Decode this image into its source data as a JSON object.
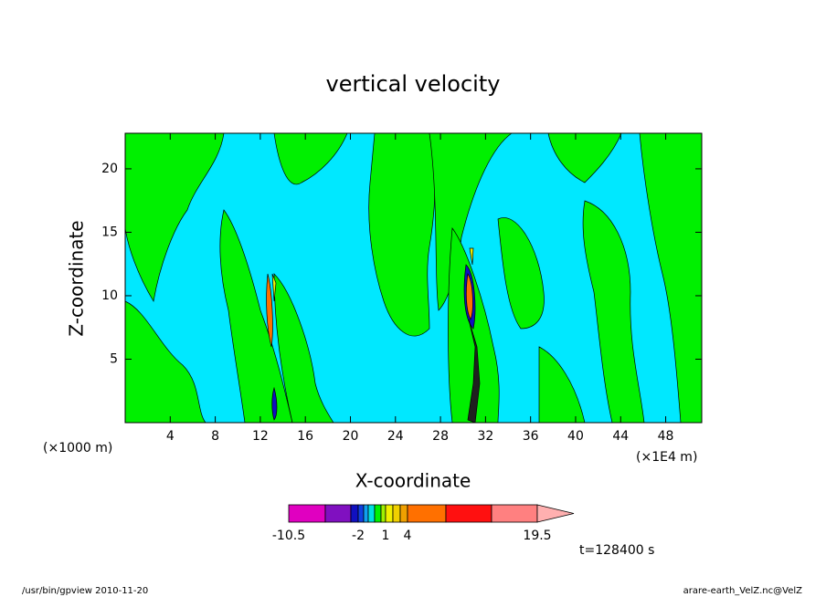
{
  "chart_data": {
    "type": "contour",
    "title": "vertical velocity",
    "xlabel": "X-coordinate",
    "ylabel": "Z-coordinate",
    "x_unit": "(×1000 m)",
    "x_unit_right": "(×1E4 m)",
    "xlim": [
      0,
      51.2
    ],
    "ylim": [
      0,
      22.8
    ],
    "xticks": [
      4,
      8,
      12,
      16,
      20,
      24,
      28,
      32,
      36,
      40,
      44,
      48
    ],
    "yticks": [
      5,
      10,
      15,
      20
    ],
    "colorbar": {
      "levels": [
        -10.5,
        null,
        null,
        -2,
        null,
        null,
        null,
        null,
        1,
        null,
        null,
        4,
        null,
        null,
        19.5
      ],
      "colors": [
        "#e000c0",
        "#8010c0",
        "#1010c0",
        "#1040e0",
        "#10a0f0",
        "#00e0e0",
        "#00f000",
        "#a0f000",
        "#f0f000",
        "#f0d000",
        "#f0a000",
        "#ff7000",
        "#ff1010",
        "#ff8080",
        "#ffb0b0"
      ]
    },
    "annotation": "t=128400 s",
    "footer_left": "/usr/bin/gpview  2010-11-20",
    "footer_right": "arare-earth_VelZ.nc@VelZ"
  }
}
